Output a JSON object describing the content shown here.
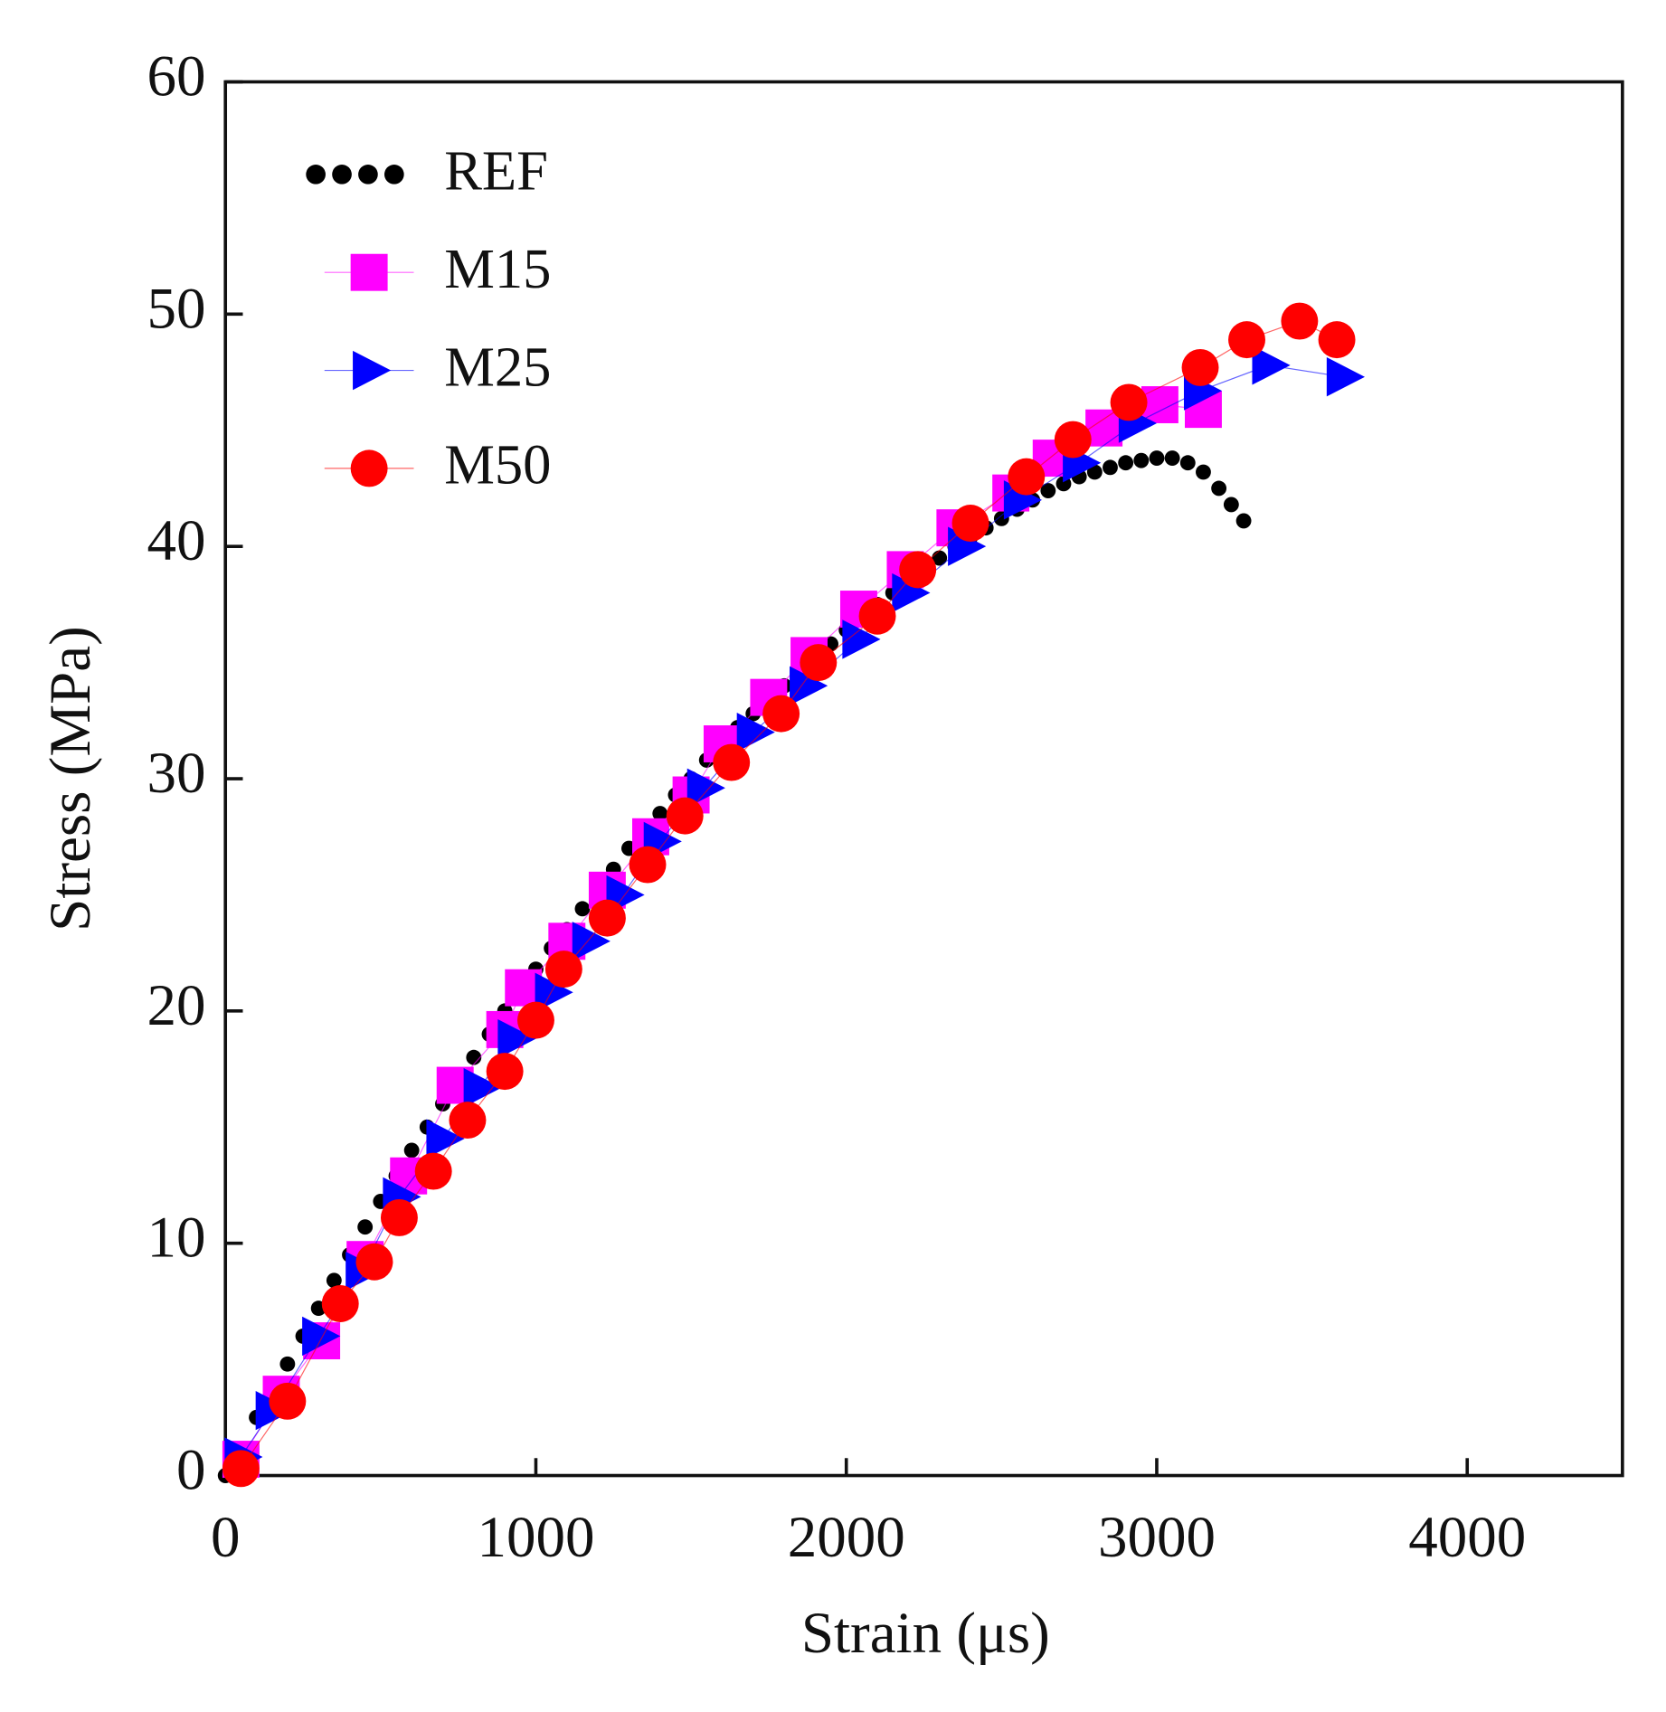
{
  "chart_data": {
    "type": "line",
    "xlabel": "Strain (μs)",
    "ylabel": "Stress (MPa)",
    "xlim": [
      0,
      4500
    ],
    "ylim": [
      0,
      60
    ],
    "xticks": [
      0,
      1000,
      2000,
      3000,
      4000
    ],
    "yticks": [
      0,
      10,
      20,
      30,
      40,
      50,
      60
    ],
    "legend": "upper left",
    "series": [
      {
        "name": "REF",
        "color": "#000000",
        "marker": "dot",
        "x": [
          0,
          50,
          100,
          150,
          200,
          250,
          300,
          350,
          400,
          450,
          500,
          550,
          600,
          650,
          700,
          750,
          800,
          850,
          900,
          950,
          1000,
          1050,
          1100,
          1150,
          1200,
          1250,
          1300,
          1350,
          1400,
          1450,
          1500,
          1550,
          1600,
          1650,
          1700,
          1750,
          1800,
          1850,
          1900,
          1950,
          2000,
          2050,
          2100,
          2150,
          2200,
          2250,
          2300,
          2350,
          2400,
          2450,
          2500,
          2550,
          2600,
          2650,
          2700,
          2750,
          2800,
          2850,
          2900,
          2950,
          3000,
          3050,
          3100,
          3150,
          3200,
          3240,
          3280
        ],
        "values": [
          0,
          1,
          2.5,
          3.7,
          4.8,
          6,
          7.2,
          8.4,
          9.5,
          10.7,
          11.8,
          12.9,
          14,
          15,
          16,
          17,
          18,
          19,
          20,
          20.9,
          21.8,
          22.7,
          23.5,
          24.4,
          25.2,
          26.1,
          27,
          27.8,
          28.5,
          29.3,
          30,
          30.8,
          31.5,
          32.2,
          32.8,
          33.4,
          34,
          34.6,
          35.2,
          35.8,
          36.4,
          37,
          37.5,
          38,
          38.5,
          39,
          39.5,
          40,
          40.4,
          40.8,
          41.2,
          41.6,
          42,
          42.4,
          42.7,
          43,
          43.2,
          43.4,
          43.6,
          43.7,
          43.8,
          43.8,
          43.6,
          43.2,
          42.5,
          41.8,
          41.1
        ]
      },
      {
        "name": "M15",
        "color": "#ff00ff",
        "marker": "square",
        "x": [
          50,
          180,
          310,
          450,
          590,
          740,
          900,
          960,
          1100,
          1230,
          1370,
          1500,
          1600,
          1750,
          1880,
          2040,
          2190,
          2350,
          2530,
          2660,
          2830,
          3010,
          3150
        ],
        "values": [
          0.7,
          3.5,
          5.8,
          9.3,
          12.9,
          16.8,
          19.2,
          21,
          23,
          25.2,
          27.5,
          29.3,
          31.5,
          33.5,
          35.3,
          37.3,
          39,
          40.8,
          42.3,
          43.8,
          45.1,
          46.1,
          45.9
        ]
      },
      {
        "name": "M25",
        "color": "#0000ff",
        "marker": "triangle-right",
        "x": [
          50,
          150,
          300,
          440,
          560,
          700,
          820,
          930,
          1050,
          1170,
          1280,
          1400,
          1540,
          1700,
          1870,
          2040,
          2200,
          2380,
          2560,
          2750,
          2930,
          3140,
          3360,
          3600
        ],
        "values": [
          0.8,
          2.8,
          6,
          8.8,
          12,
          14.5,
          16.7,
          18.8,
          20.8,
          23,
          25,
          27.3,
          29.6,
          32,
          34,
          36,
          38,
          40,
          42,
          43.6,
          45.3,
          46.7,
          47.8,
          47.3
        ]
      },
      {
        "name": "M50",
        "color": "#ff0000",
        "marker": "circle",
        "x": [
          50,
          200,
          370,
          480,
          560,
          670,
          780,
          900,
          1000,
          1090,
          1230,
          1360,
          1480,
          1630,
          1790,
          1910,
          2100,
          2230,
          2400,
          2580,
          2730,
          2910,
          3140,
          3290,
          3460,
          3580
        ],
        "values": [
          0.3,
          3.2,
          7.4,
          9.2,
          11.1,
          13.1,
          15.3,
          17.4,
          19.6,
          21.8,
          24,
          26.3,
          28.4,
          30.7,
          32.8,
          35,
          37,
          39,
          41,
          43,
          44.6,
          46.2,
          47.7,
          48.9,
          49.7,
          48.9
        ]
      }
    ]
  }
}
